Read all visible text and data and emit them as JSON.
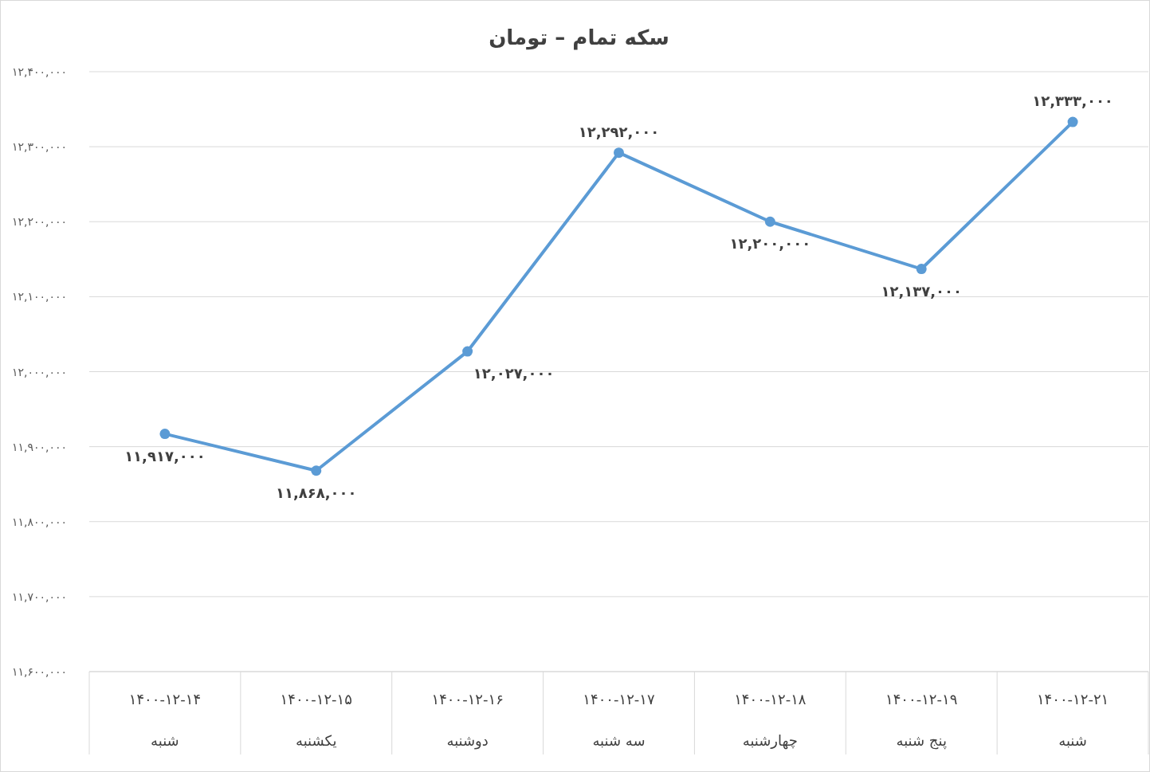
{
  "chart_data": {
    "type": "line",
    "title": "سکه تمام – تومان",
    "categories": [
      "۱۴۰۰-۱۲-۱۴\nشنبه",
      "۱۴۰۰-۱۲-۱۵\nیکشنبه",
      "۱۴۰۰-۱۲-۱۶\nدوشنبه",
      "۱۴۰۰-۱۲-۱۷\nسه شنبه",
      "۱۴۰۰-۱۲-۱۸\nچهارشنبه",
      "۱۴۰۰-۱۲-۱۹\nپنج شنبه",
      "۱۴۰۰-۱۲-۲۱\nشنبه"
    ],
    "series": [
      {
        "color": "#5b9bd5",
        "values": [
          11917000,
          11868000,
          12027000,
          12292000,
          12200000,
          12137000,
          12333000
        ],
        "value_labels": [
          "۱۱,۹۱۷,۰۰۰",
          "۱۱,۸۶۸,۰۰۰",
          "۱۲,۰۲۷,۰۰۰",
          "۱۲,۲۹۲,۰۰۰",
          "۱۲,۲۰۰,۰۰۰",
          "۱۲,۱۳۷,۰۰۰",
          "۱۲,۳۳۳,۰۰۰"
        ]
      }
    ],
    "ylim": [
      11600000,
      12400000
    ],
    "yticks": [
      {
        "value": 11600000,
        "label": "۱۱,۶۰۰,۰۰۰"
      },
      {
        "value": 11700000,
        "label": "۱۱,۷۰۰,۰۰۰"
      },
      {
        "value": 11800000,
        "label": "۱۱,۸۰۰,۰۰۰"
      },
      {
        "value": 11900000,
        "label": "۱۱,۹۰۰,۰۰۰"
      },
      {
        "value": 12000000,
        "label": "۱۲,۰۰۰,۰۰۰"
      },
      {
        "value": 12100000,
        "label": "۱۲,۱۰۰,۰۰۰"
      },
      {
        "value": 12200000,
        "label": "۱۲,۲۰۰,۰۰۰"
      },
      {
        "value": 12300000,
        "label": "۱۲,۳۰۰,۰۰۰"
      },
      {
        "value": 12400000,
        "label": "۱۲,۴۰۰,۰۰۰"
      }
    ],
    "grid": "y",
    "marker": "circle",
    "line_style": "solid"
  }
}
